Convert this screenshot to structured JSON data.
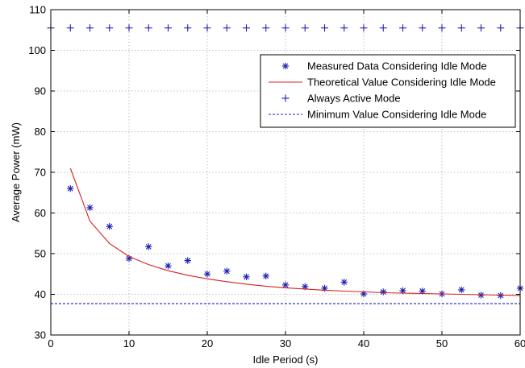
{
  "chart_data": {
    "type": "line",
    "xlabel": "Idle Period (s)",
    "ylabel": "Average Power (mW)",
    "xlim": [
      0,
      60
    ],
    "ylim": [
      30,
      110
    ],
    "xticks": [
      0,
      10,
      20,
      30,
      40,
      50,
      60
    ],
    "yticks": [
      30,
      40,
      50,
      60,
      70,
      80,
      90,
      100,
      110
    ],
    "grid": true,
    "legend_position": "upper-right",
    "series": [
      {
        "name": "Measured Data Considering Idle Mode",
        "style": "marker-star",
        "color": "#1f1fb4",
        "x": [
          2.5,
          5,
          7.5,
          10,
          12.5,
          15,
          17.5,
          20,
          22.5,
          25,
          27.5,
          30,
          32.5,
          35,
          37.5,
          40,
          42.5,
          45,
          47.5,
          50,
          52.5,
          55,
          57.5,
          60
        ],
        "y": [
          66,
          61.3,
          56.7,
          48.8,
          51.7,
          47,
          48.3,
          45,
          45.7,
          44.3,
          44.5,
          42.3,
          41.9,
          41.5,
          43,
          40.1,
          40.6,
          40.9,
          40.8,
          40.1,
          41.1,
          39.8,
          39.7,
          41.5
        ]
      },
      {
        "name": "Theoretical Value Considering Idle Mode",
        "style": "line",
        "color": "#d62020",
        "x": [
          2.5,
          5,
          7.5,
          10,
          12.5,
          15,
          17.5,
          20,
          22.5,
          25,
          27.5,
          30,
          32.5,
          35,
          37.5,
          40,
          42.5,
          45,
          47.5,
          50,
          52.5,
          55,
          57.5,
          60
        ],
        "y": [
          71,
          58,
          52.5,
          49.3,
          47.3,
          45.8,
          44.7,
          43.8,
          43.1,
          42.5,
          42,
          41.6,
          41.3,
          41,
          40.8,
          40.6,
          40.4,
          40.3,
          40.2,
          40.1,
          40,
          39.9,
          39.8,
          39.7
        ]
      },
      {
        "name": "Always Active Mode",
        "style": "marker-plus",
        "color": "#1f1fb4",
        "x": [
          0,
          2.5,
          5,
          7.5,
          10,
          12.5,
          15,
          17.5,
          20,
          22.5,
          25,
          27.5,
          30,
          32.5,
          35,
          37.5,
          40,
          42.5,
          45,
          47.5,
          50,
          52.5,
          55,
          57.5,
          60
        ],
        "y": [
          105.5,
          105.5,
          105.5,
          105.5,
          105.5,
          105.5,
          105.5,
          105.5,
          105.5,
          105.5,
          105.5,
          105.5,
          105.5,
          105.5,
          105.5,
          105.5,
          105.5,
          105.5,
          105.5,
          105.5,
          105.5,
          105.5,
          105.5,
          105.5,
          105.5
        ]
      },
      {
        "name": "Minimum Value Considering Idle Mode",
        "style": "dashed-line",
        "color": "#1f1fb4",
        "x": [
          0,
          60
        ],
        "y": [
          37.7,
          37.7
        ]
      }
    ]
  }
}
